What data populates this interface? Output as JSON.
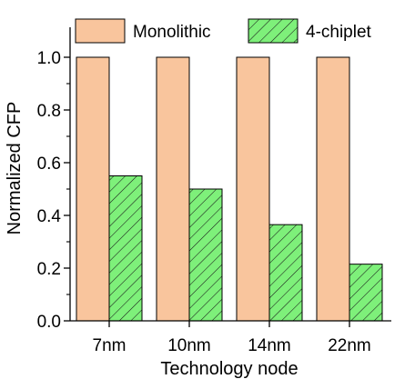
{
  "chart_data": {
    "type": "bar",
    "categories": [
      "7nm",
      "10nm",
      "14nm",
      "22nm"
    ],
    "series": [
      {
        "name": "Monolithic",
        "values": [
          1.0,
          1.0,
          1.0,
          1.0
        ],
        "color": "#f9c59d",
        "pattern": "solid"
      },
      {
        "name": "4-chiplet",
        "values": [
          0.55,
          0.5,
          0.365,
          0.215
        ],
        "color": "#7ef07a",
        "pattern": "diagonal-hatch"
      }
    ],
    "xlabel": "Technology node",
    "ylabel": "Normalized CFP",
    "ylim": [
      0.0,
      1.1
    ],
    "yticks": [
      "0.0",
      "0.2",
      "0.4",
      "0.6",
      "0.8",
      "1.0"
    ],
    "legend_position": "top",
    "grid": false
  }
}
